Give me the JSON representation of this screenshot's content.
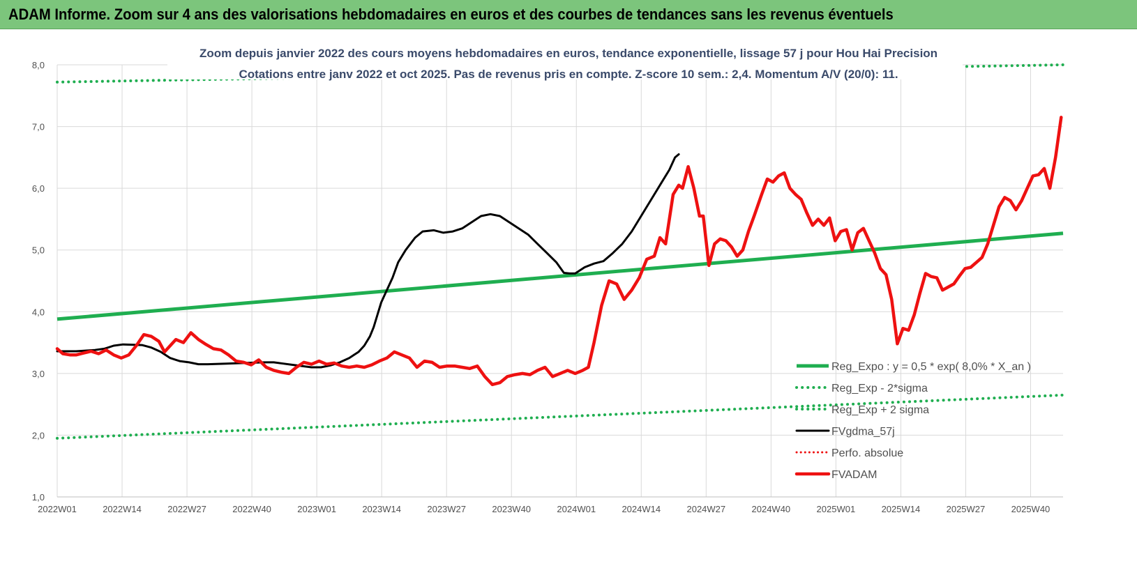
{
  "banner": {
    "title": "ADAM Informe. Zoom sur 4 ans des valorisations hebdomadaires en euros et des courbes de tendances sans les revenus éventuels"
  },
  "chart_data": {
    "type": "line",
    "title": "Zoom depuis janvier 2022 des cours moyens hebdomadaires en euros, tendance exponentielle, lissage 57 j pour Hou Hai Precision",
    "subtitle": "Cotations entre janv 2022 et oct 2025. Pas de revenus pris en compte. Z-score 10 sem.: 2,4. Momentum A/V (20/0): 11.",
    "xlabel": "",
    "ylabel": "",
    "ylim": [
      1.0,
      8.0
    ],
    "y_ticks": [
      "1,0",
      "2,0",
      "3,0",
      "4,0",
      "5,0",
      "6,0",
      "7,0",
      "8,0"
    ],
    "x_ticks": [
      "2022W01",
      "2022W14",
      "2022W27",
      "2022W40",
      "2023W01",
      "2023W14",
      "2023W27",
      "2023W40",
      "2024W01",
      "2024W14",
      "2024W27",
      "2024W40",
      "2025W01",
      "2025W14",
      "2025W27",
      "2025W40"
    ],
    "grid": true,
    "legend_position": "bottom-right",
    "colors": {
      "green": "#1fae50",
      "black": "#000000",
      "red": "#ee1111",
      "grid": "#d9d9d9"
    },
    "series": [
      {
        "name": "Reg_Expo : y = 0,5 * exp( 8,0% *  X_an )",
        "style": "solid-green",
        "points": [
          [
            0,
            3.88
          ],
          [
            207,
            5.27
          ]
        ]
      },
      {
        "name": "Reg_Exp - 2*sigma",
        "style": "dotted-green",
        "points": [
          [
            0,
            1.95
          ],
          [
            207,
            2.65
          ]
        ]
      },
      {
        "name": "Reg_Exp + 2 sigma",
        "style": "dotted-green",
        "points": [
          [
            0,
            7.72
          ],
          [
            207,
            8.0
          ]
        ]
      },
      {
        "name": "FVgdma_57j",
        "style": "solid-black",
        "points": [
          [
            0,
            3.36
          ],
          [
            10,
            3.36
          ],
          [
            20,
            3.38
          ],
          [
            25,
            3.4
          ],
          [
            30,
            3.45
          ],
          [
            35,
            3.47
          ],
          [
            45,
            3.46
          ],
          [
            50,
            3.42
          ],
          [
            55,
            3.35
          ],
          [
            60,
            3.25
          ],
          [
            65,
            3.2
          ],
          [
            70,
            3.18
          ],
          [
            75,
            3.15
          ],
          [
            80,
            3.15
          ],
          [
            90,
            3.16
          ],
          [
            100,
            3.17
          ],
          [
            110,
            3.18
          ],
          [
            115,
            3.18
          ],
          [
            120,
            3.16
          ],
          [
            125,
            3.14
          ],
          [
            130,
            3.12
          ],
          [
            135,
            3.1
          ],
          [
            140,
            3.1
          ],
          [
            145,
            3.13
          ],
          [
            150,
            3.18
          ],
          [
            155,
            3.25
          ],
          [
            160,
            3.35
          ],
          [
            163,
            3.45
          ],
          [
            166,
            3.6
          ],
          [
            168,
            3.75
          ],
          [
            170,
            3.95
          ],
          [
            172,
            4.15
          ],
          [
            175,
            4.35
          ],
          [
            178,
            4.55
          ],
          [
            181,
            4.8
          ],
          [
            185,
            5.0
          ],
          [
            190,
            5.2
          ],
          [
            194,
            5.3
          ],
          [
            200,
            5.32
          ],
          [
            205,
            5.28
          ],
          [
            210,
            5.3
          ],
          [
            215,
            5.35
          ],
          [
            220,
            5.45
          ],
          [
            225,
            5.55
          ],
          [
            230,
            5.58
          ],
          [
            235,
            5.55
          ],
          [
            240,
            5.45
          ],
          [
            245,
            5.35
          ],
          [
            250,
            5.25
          ],
          [
            255,
            5.1
          ],
          [
            260,
            4.95
          ],
          [
            265,
            4.8
          ],
          [
            269,
            4.63
          ],
          [
            272,
            4.62
          ],
          [
            275,
            4.62
          ],
          [
            280,
            4.72
          ],
          [
            285,
            4.78
          ],
          [
            290,
            4.82
          ],
          [
            295,
            4.95
          ],
          [
            300,
            5.1
          ],
          [
            305,
            5.3
          ],
          [
            310,
            5.55
          ],
          [
            315,
            5.8
          ],
          [
            320,
            6.05
          ],
          [
            325,
            6.3
          ],
          [
            328,
            6.5
          ],
          [
            330,
            6.55
          ]
        ]
      },
      {
        "name": "Perfo. absolue",
        "style": "dotted-red",
        "points": []
      },
      {
        "name": "FVADAM",
        "style": "solid-red",
        "points": [
          [
            0,
            3.4
          ],
          [
            3,
            3.32
          ],
          [
            7,
            3.3
          ],
          [
            10,
            3.3
          ],
          [
            14,
            3.33
          ],
          [
            18,
            3.36
          ],
          [
            22,
            3.32
          ],
          [
            26,
            3.38
          ],
          [
            30,
            3.3
          ],
          [
            34,
            3.25
          ],
          [
            38,
            3.3
          ],
          [
            42,
            3.45
          ],
          [
            46,
            3.63
          ],
          [
            50,
            3.6
          ],
          [
            54,
            3.52
          ],
          [
            57,
            3.35
          ],
          [
            60,
            3.45
          ],
          [
            63,
            3.55
          ],
          [
            67,
            3.5
          ],
          [
            71,
            3.66
          ],
          [
            75,
            3.55
          ],
          [
            79,
            3.47
          ],
          [
            83,
            3.4
          ],
          [
            87,
            3.38
          ],
          [
            91,
            3.3
          ],
          [
            95,
            3.2
          ],
          [
            99,
            3.18
          ],
          [
            103,
            3.14
          ],
          [
            107,
            3.22
          ],
          [
            111,
            3.1
          ],
          [
            115,
            3.05
          ],
          [
            119,
            3.02
          ],
          [
            123,
            3.0
          ],
          [
            127,
            3.1
          ],
          [
            131,
            3.18
          ],
          [
            135,
            3.15
          ],
          [
            139,
            3.2
          ],
          [
            143,
            3.15
          ],
          [
            147,
            3.17
          ],
          [
            151,
            3.12
          ],
          [
            155,
            3.1
          ],
          [
            159,
            3.12
          ],
          [
            163,
            3.1
          ],
          [
            167,
            3.14
          ],
          [
            171,
            3.2
          ],
          [
            175,
            3.25
          ],
          [
            179,
            3.35
          ],
          [
            183,
            3.3
          ],
          [
            187,
            3.25
          ],
          [
            191,
            3.1
          ],
          [
            195,
            3.2
          ],
          [
            199,
            3.18
          ],
          [
            203,
            3.1
          ],
          [
            207,
            3.12
          ],
          [
            211,
            3.12
          ],
          [
            215,
            3.1
          ],
          [
            219,
            3.08
          ],
          [
            223,
            3.12
          ],
          [
            227,
            2.95
          ],
          [
            231,
            2.82
          ],
          [
            235,
            2.85
          ],
          [
            239,
            2.95
          ],
          [
            243,
            2.98
          ],
          [
            247,
            3.0
          ],
          [
            251,
            2.98
          ],
          [
            255,
            3.05
          ],
          [
            259,
            3.1
          ],
          [
            263,
            2.95
          ],
          [
            267,
            3.0
          ],
          [
            271,
            3.05
          ],
          [
            275,
            3.0
          ],
          [
            279,
            3.05
          ],
          [
            282,
            3.1
          ],
          [
            285,
            3.5
          ],
          [
            289,
            4.1
          ],
          [
            293,
            4.5
          ],
          [
            297,
            4.45
          ],
          [
            301,
            4.2
          ],
          [
            305,
            4.35
          ],
          [
            309,
            4.55
          ],
          [
            313,
            4.85
          ],
          [
            317,
            4.9
          ],
          [
            320,
            5.2
          ],
          [
            323,
            5.1
          ],
          [
            327,
            5.9
          ],
          [
            330,
            6.05
          ],
          [
            332,
            6.0
          ],
          [
            335,
            6.35
          ],
          [
            338,
            6.0
          ],
          [
            341,
            5.55
          ],
          [
            343,
            5.55
          ],
          [
            346,
            4.75
          ],
          [
            349,
            5.1
          ],
          [
            352,
            5.18
          ],
          [
            355,
            5.15
          ],
          [
            358,
            5.05
          ],
          [
            361,
            4.9
          ],
          [
            364,
            5.0
          ],
          [
            367,
            5.3
          ],
          [
            370,
            5.55
          ],
          [
            374,
            5.9
          ],
          [
            377,
            6.15
          ],
          [
            380,
            6.1
          ],
          [
            383,
            6.2
          ],
          [
            386,
            6.25
          ],
          [
            389,
            6.0
          ],
          [
            392,
            5.9
          ],
          [
            395,
            5.82
          ],
          [
            398,
            5.6
          ],
          [
            401,
            5.4
          ],
          [
            404,
            5.5
          ],
          [
            407,
            5.4
          ],
          [
            410,
            5.52
          ],
          [
            413,
            5.15
          ],
          [
            416,
            5.3
          ],
          [
            419,
            5.33
          ],
          [
            422,
            5.0
          ],
          [
            425,
            5.28
          ],
          [
            428,
            5.35
          ],
          [
            431,
            5.15
          ],
          [
            434,
            4.95
          ],
          [
            437,
            4.7
          ],
          [
            440,
            4.6
          ],
          [
            443,
            4.2
          ],
          [
            446,
            3.48
          ],
          [
            449,
            3.73
          ],
          [
            452,
            3.7
          ],
          [
            455,
            3.95
          ],
          [
            458,
            4.3
          ],
          [
            461,
            4.62
          ],
          [
            464,
            4.57
          ],
          [
            467,
            4.55
          ],
          [
            470,
            4.35
          ],
          [
            473,
            4.4
          ],
          [
            476,
            4.45
          ],
          [
            479,
            4.58
          ],
          [
            482,
            4.7
          ],
          [
            485,
            4.72
          ],
          [
            488,
            4.8
          ],
          [
            491,
            4.88
          ],
          [
            494,
            5.1
          ],
          [
            497,
            5.4
          ],
          [
            500,
            5.7
          ],
          [
            503,
            5.85
          ],
          [
            506,
            5.8
          ],
          [
            509,
            5.65
          ],
          [
            512,
            5.8
          ],
          [
            515,
            6.0
          ],
          [
            518,
            6.2
          ],
          [
            521,
            6.22
          ],
          [
            524,
            6.32
          ],
          [
            527,
            6.0
          ],
          [
            530,
            6.5
          ],
          [
            533,
            7.15
          ]
        ]
      }
    ]
  }
}
